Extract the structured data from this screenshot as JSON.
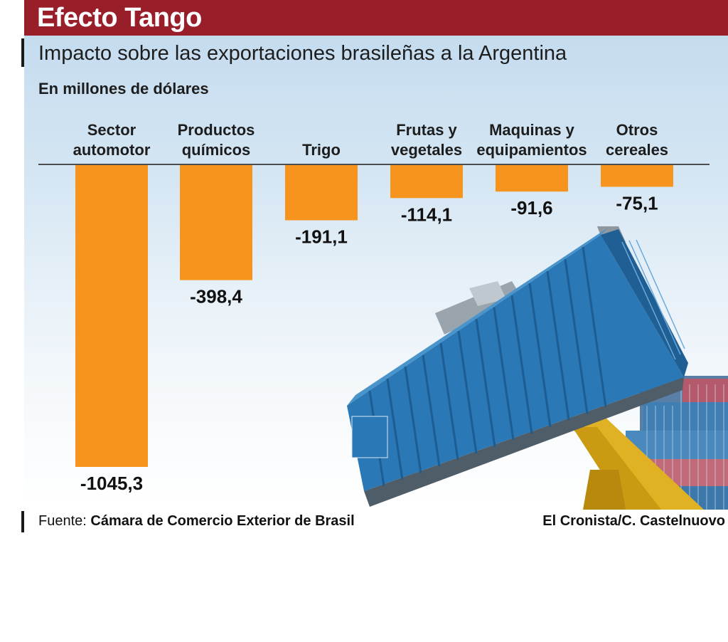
{
  "header": {
    "title": "Efecto Tango",
    "subtitle": "Impacto sobre las exportaciones brasileñas a la Argentina",
    "unit": "En millones de dólares"
  },
  "colors": {
    "title_bar": "#981f2a",
    "bar": "#f7941d",
    "text": "#1d1d1d",
    "container_blue": "#2a78b6",
    "crane_yellow": "#e2b320"
  },
  "chart_data": {
    "type": "bar",
    "orientation": "vertical-down",
    "categories": [
      [
        "Sector",
        "automotor"
      ],
      [
        "Productos",
        "químicos"
      ],
      [
        "Trigo"
      ],
      [
        "Frutas y",
        "vegetales"
      ],
      [
        "Maquinas y",
        "equipamientos"
      ],
      [
        "Otros",
        "cereales"
      ]
    ],
    "values": [
      -1045.3,
      -398.4,
      -191.1,
      -114.1,
      -91.6,
      -75.1
    ],
    "value_labels": [
      "-1045,3",
      "-398,4",
      "-191,1",
      "-114,1",
      "-91,6",
      "-75,1"
    ],
    "ylim": [
      -1045.3,
      0
    ],
    "grid": false,
    "legend": "none",
    "background_image": "shipping-container-being-lifted-by-crane"
  },
  "footer": {
    "source_prefix": "Fuente: ",
    "source_name": "Cámara de Comercio Exterior de Brasil",
    "credit": "El Cronista/C. Castelnuovo"
  }
}
